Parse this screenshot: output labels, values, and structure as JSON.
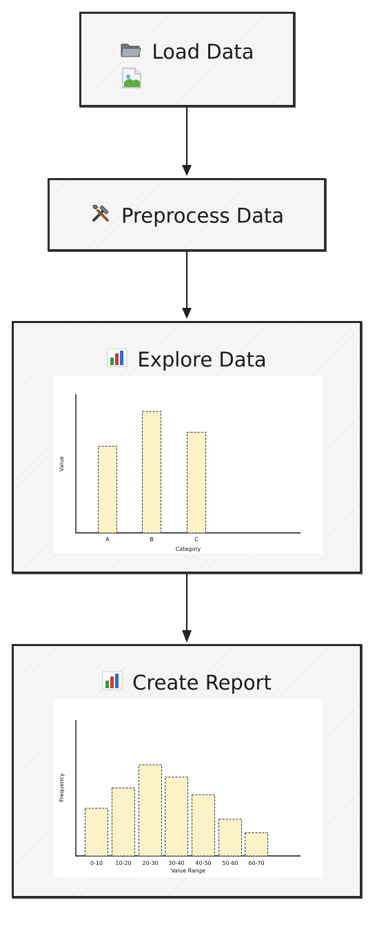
{
  "flow": {
    "steps": [
      {
        "label": "Load Data",
        "icon": "folder-icon"
      },
      {
        "label": "Preprocess Data",
        "icon": "tools-icon"
      },
      {
        "label": "Explore Data",
        "icon": "bar-chart-icon"
      },
      {
        "label": "Create Report",
        "icon": "bar-chart-icon"
      }
    ],
    "image_placeholder_icon": "image-icon"
  },
  "colors": {
    "bar_fill": "#fdf1c8",
    "bar_stroke": "#2a2a2a",
    "box_background": "#f6f6f6",
    "box_border": "#2b2b2b"
  },
  "chart_data": [
    {
      "type": "bar",
      "categories": [
        "A",
        "B",
        "C"
      ],
      "values": [
        5,
        7,
        5.8
      ],
      "xlabel": "Category",
      "ylabel": "Value",
      "ylim": [
        0,
        8
      ],
      "grid": false
    },
    {
      "type": "bar",
      "categories": [
        "0-10",
        "10-20",
        "20-30",
        "30-40",
        "40-50",
        "50-60",
        "60-70"
      ],
      "values": [
        3.5,
        5,
        6.7,
        5.8,
        4.5,
        2.7,
        1.7
      ],
      "xlabel": "Value Range",
      "ylabel": "Frequency",
      "ylim": [
        0,
        10
      ],
      "grid": false
    }
  ]
}
